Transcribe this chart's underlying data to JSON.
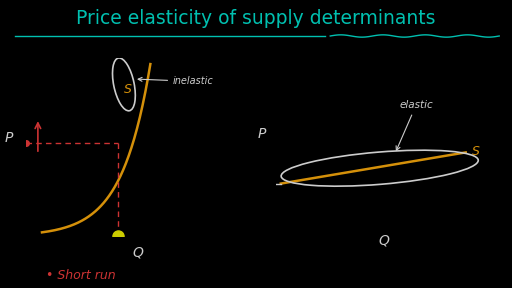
{
  "background_color": "#000000",
  "title": "Price elasticity of supply determinants",
  "title_color": "#00c0b0",
  "title_fontsize": 13.5,
  "axis_color": "#aaaaaa",
  "supply_curve_color": "#d4900a",
  "annotation_color": "#cccccc",
  "short_run_label_color": "#cc3333",
  "dashed_line_color": "#cc3333",
  "ellipse_color": "#cccccc",
  "p_label": "P",
  "q_label": "Q",
  "inelastic_label": "inelastic",
  "elastic_label": "elastic",
  "short_run_label": "Short run",
  "s_label": "S"
}
